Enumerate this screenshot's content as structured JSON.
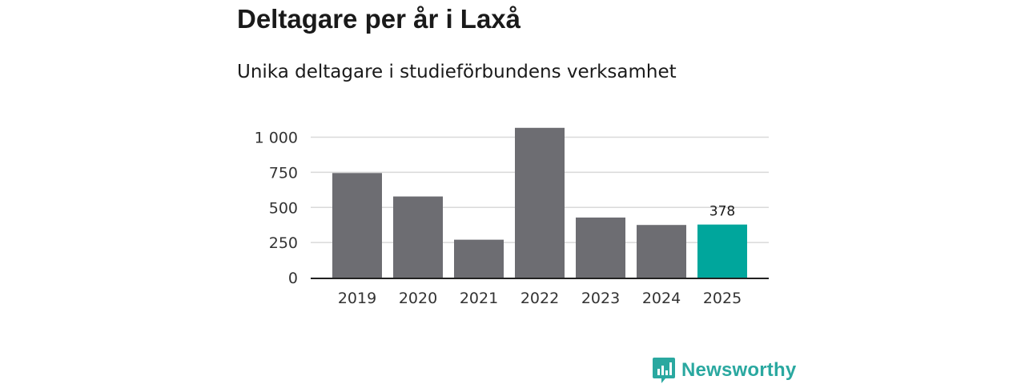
{
  "title": "Deltagare per år i Laxå",
  "subtitle": "Unika deltagare i studieförbundens verksamhet",
  "logo": {
    "text": "Newsworthy",
    "icon": "newsworthy-bar-chart-icon",
    "color": "#2aa8a0"
  },
  "chart_data": {
    "type": "bar",
    "categories": [
      "2019",
      "2020",
      "2021",
      "2022",
      "2023",
      "2024",
      "2025"
    ],
    "values": [
      745,
      578,
      270,
      1067,
      428,
      375,
      378
    ],
    "ylim": [
      0,
      1100
    ],
    "yticks": [
      0,
      250,
      500,
      750,
      1000
    ],
    "ytick_labels": [
      "0",
      "250",
      "500",
      "750",
      "1 000"
    ],
    "grid": true,
    "colors": {
      "default": "#6d6d72",
      "highlight": "#00a69c"
    },
    "highlight_index": 6,
    "annotations": [
      {
        "category": "2025",
        "text": "378"
      }
    ]
  }
}
